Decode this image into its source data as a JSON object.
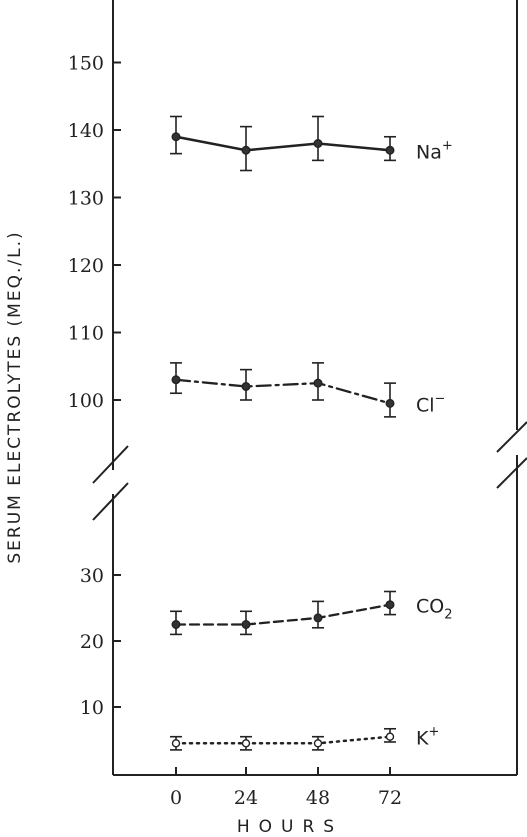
{
  "chart_data": {
    "type": "line",
    "ylabel": "SERUM ELECTROLYTES (MEQ./L.)",
    "xlabel": "HOURS",
    "x": [
      "0",
      "24",
      "48",
      "72"
    ],
    "y_ticks_upper": [
      "100",
      "110",
      "120",
      "130",
      "140",
      "150"
    ],
    "y_ticks_lower": [
      "10",
      "20",
      "30"
    ],
    "upper_ylim": [
      95,
      155
    ],
    "lower_ylim": [
      0,
      33
    ],
    "axis_break": true,
    "grid": false,
    "series": [
      {
        "name": "Na",
        "name_sup": "+",
        "name_sub": "",
        "panel": "upper",
        "line_style": "solid",
        "values": [
          139,
          137,
          138,
          137
        ],
        "err_low": [
          2.5,
          3,
          2.5,
          1.5
        ],
        "err_high": [
          3,
          3.5,
          4,
          2
        ]
      },
      {
        "name": "Cl",
        "name_sup": "−",
        "name_sub": "",
        "panel": "upper",
        "line_style": "dashdot",
        "values": [
          103,
          102,
          102.5,
          99.5
        ],
        "err_low": [
          2,
          2,
          2.5,
          2
        ],
        "err_high": [
          2.5,
          2.5,
          3,
          3
        ]
      },
      {
        "name": "CO",
        "name_sup": "",
        "name_sub": "2",
        "panel": "lower",
        "line_style": "dashed",
        "values": [
          22.5,
          22.5,
          23.5,
          25.5
        ],
        "err_low": [
          1.5,
          1.5,
          1.5,
          1.5
        ],
        "err_high": [
          2,
          2,
          2.5,
          2
        ]
      },
      {
        "name": "K",
        "name_sup": "+",
        "name_sub": "",
        "panel": "lower",
        "line_style": "dotted",
        "values": [
          4.5,
          4.5,
          4.5,
          5.5
        ],
        "err_low": [
          1,
          1,
          1,
          0.8
        ],
        "err_high": [
          1,
          1,
          1,
          1.2
        ]
      }
    ]
  }
}
